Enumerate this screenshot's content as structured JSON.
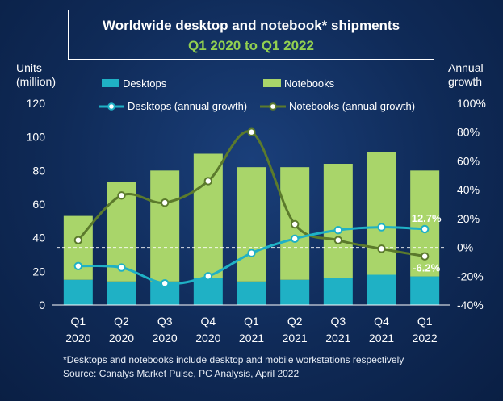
{
  "header": {
    "title": "Worldwide desktop and notebook* shipments",
    "subtitle": "Q1 2020 to Q1 2022"
  },
  "axes": {
    "left_unit_1": "Units",
    "left_unit_2": "(million)",
    "right_unit_1": "Annual",
    "right_unit_2": "growth"
  },
  "footnote": {
    "line1": "*Desktops and notebooks include desktop and mobile workstations respectively",
    "line2": "Source: Canalys Market Pulse, PC Analysis, April 2022"
  },
  "chart_data": {
    "type": "bar",
    "title": "Worldwide desktop and notebook* shipments",
    "subtitle": "Q1 2020 to Q1 2022",
    "categories": [
      [
        "Q1",
        "2020"
      ],
      [
        "Q2",
        "2020"
      ],
      [
        "Q3",
        "2020"
      ],
      [
        "Q4",
        "2020"
      ],
      [
        "Q1",
        "2021"
      ],
      [
        "Q2",
        "2021"
      ],
      [
        "Q3",
        "2021"
      ],
      [
        "Q4",
        "2021"
      ],
      [
        "Q1",
        "2022"
      ]
    ],
    "stacked": true,
    "series": [
      {
        "name": "Desktops",
        "values": [
          15,
          14,
          14,
          16,
          14,
          15,
          16,
          18,
          17
        ],
        "color": "#1fb1c5",
        "axis": "left"
      },
      {
        "name": "Notebooks",
        "values": [
          38,
          59,
          66,
          74,
          68,
          67,
          68,
          73,
          63
        ],
        "color": "#a9d56a",
        "axis": "left"
      },
      {
        "name": "Desktops (annual growth)",
        "type": "line",
        "values": [
          -13,
          -14,
          -25,
          -20,
          -4,
          6,
          12,
          14,
          12.7
        ],
        "color": "#1fb1c5",
        "axis": "right"
      },
      {
        "name": "Notebooks (annual growth)",
        "type": "line",
        "values": [
          5,
          36,
          31,
          46,
          80,
          16,
          5,
          -1,
          -6.2
        ],
        "color": "#5b7a2c",
        "axis": "right"
      }
    ],
    "ylim": [
      0,
      120
    ],
    "yticks": [
      "0",
      "20",
      "40",
      "60",
      "80",
      "100",
      "120"
    ],
    "y2lim": [
      -40,
      100
    ],
    "y2ticks": [
      "-40%",
      "-20%",
      "0%",
      "20%",
      "40%",
      "60%",
      "80%",
      "100%"
    ],
    "data_labels": [
      {
        "series": "Desktops (annual growth)",
        "index": 8,
        "text": "12.7%"
      },
      {
        "series": "Notebooks (annual growth)",
        "index": 8,
        "text": "-6.2%"
      }
    ],
    "grid": false,
    "zero_growth_reference_line": true,
    "legend_position": "top"
  }
}
